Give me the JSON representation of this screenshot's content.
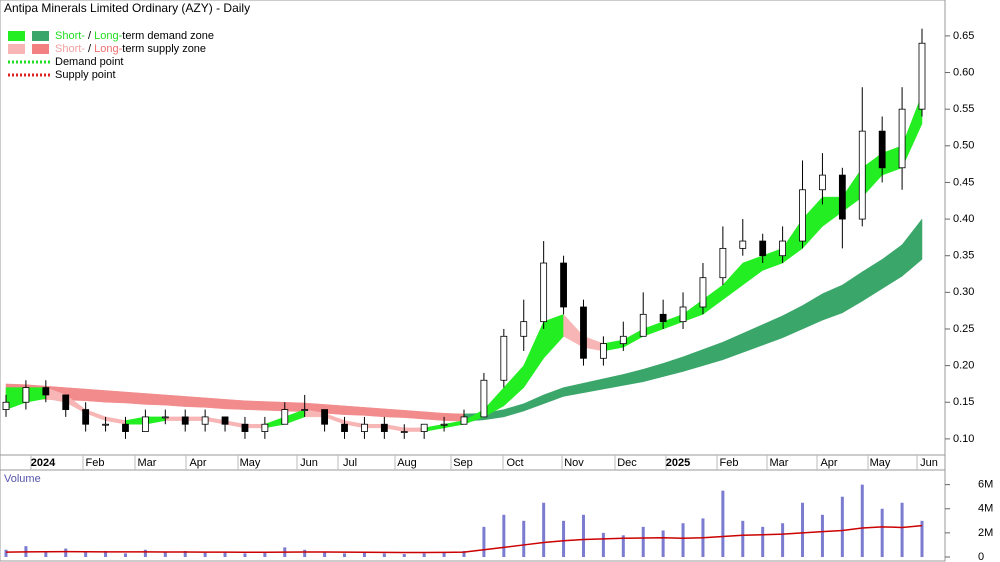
{
  "chart_data": [
    {
      "type": "candlestick",
      "title": "Antipa Minerals Limited Ordinary (AZY) - Daily",
      "legend": [
        {
          "parts": [
            "Short-",
            " / ",
            "Long-",
            "term demand zone"
          ],
          "part_colors": [
            "#22dd22",
            "#000000",
            "#22dd22",
            "#000000"
          ],
          "swatches": [
            "#22ee22",
            "#3aa66a"
          ]
        },
        {
          "parts": [
            "Short-",
            " / ",
            "Long-",
            "term supply zone"
          ],
          "part_colors": [
            "#f4a0a0",
            "#000000",
            "#f07070",
            "#000000"
          ],
          "swatches": [
            "#f7b5b5",
            "#f28080"
          ]
        },
        {
          "parts": [
            "Demand point"
          ],
          "part_colors": [
            "#000000"
          ],
          "line": "#22dd22"
        },
        {
          "parts": [
            "Supply point"
          ],
          "part_colors": [
            "#000000"
          ],
          "line": "#dd2222"
        }
      ],
      "xtick_labels": [
        "2024",
        "Feb",
        "Mar",
        "Apr",
        "May",
        "Jun",
        "Jul",
        "Aug",
        "Sep",
        "Oct",
        "Nov",
        "Dec",
        "2025",
        "Feb",
        "Mar",
        "Apr",
        "May",
        "Jun"
      ],
      "open": [
        0.14,
        0.15,
        0.17,
        0.16,
        0.14,
        0.12,
        0.12,
        0.11,
        0.13,
        0.13,
        0.12,
        0.13,
        0.12,
        0.11,
        0.12,
        0.14,
        0.14,
        0.12,
        0.11,
        0.12,
        0.11,
        0.11,
        0.12,
        0.12,
        0.13,
        0.18,
        0.24,
        0.26,
        0.34,
        0.28,
        0.21,
        0.23,
        0.24,
        0.27,
        0.26,
        0.28,
        0.32,
        0.36,
        0.37,
        0.35,
        0.37,
        0.44,
        0.46,
        0.4,
        0.52,
        0.47,
        0.55
      ],
      "high": [
        0.16,
        0.18,
        0.18,
        0.16,
        0.15,
        0.13,
        0.13,
        0.14,
        0.14,
        0.14,
        0.14,
        0.13,
        0.13,
        0.13,
        0.15,
        0.16,
        0.14,
        0.13,
        0.13,
        0.13,
        0.12,
        0.12,
        0.13,
        0.14,
        0.19,
        0.25,
        0.29,
        0.37,
        0.35,
        0.29,
        0.24,
        0.26,
        0.3,
        0.29,
        0.3,
        0.34,
        0.39,
        0.4,
        0.38,
        0.39,
        0.48,
        0.49,
        0.47,
        0.58,
        0.54,
        0.58,
        0.66
      ],
      "low": [
        0.13,
        0.14,
        0.15,
        0.13,
        0.11,
        0.11,
        0.1,
        0.11,
        0.12,
        0.11,
        0.11,
        0.11,
        0.1,
        0.1,
        0.12,
        0.13,
        0.11,
        0.1,
        0.1,
        0.1,
        0.1,
        0.1,
        0.11,
        0.12,
        0.13,
        0.17,
        0.22,
        0.25,
        0.27,
        0.2,
        0.2,
        0.22,
        0.24,
        0.25,
        0.25,
        0.27,
        0.31,
        0.35,
        0.34,
        0.34,
        0.36,
        0.42,
        0.36,
        0.39,
        0.45,
        0.44,
        0.54
      ],
      "close": [
        0.15,
        0.17,
        0.16,
        0.14,
        0.12,
        0.12,
        0.11,
        0.13,
        0.13,
        0.12,
        0.13,
        0.12,
        0.11,
        0.12,
        0.14,
        0.14,
        0.12,
        0.11,
        0.12,
        0.11,
        0.11,
        0.12,
        0.12,
        0.13,
        0.18,
        0.24,
        0.26,
        0.34,
        0.28,
        0.21,
        0.23,
        0.24,
        0.27,
        0.26,
        0.28,
        0.32,
        0.36,
        0.37,
        0.35,
        0.37,
        0.44,
        0.46,
        0.4,
        0.52,
        0.47,
        0.55,
        0.64
      ],
      "zones": [
        {
          "demand_color": "#3aa66a",
          "supply_color": "#f28c8c",
          "upper": [
            0.175,
            0.174,
            0.172,
            0.17,
            0.168,
            0.166,
            0.164,
            0.162,
            0.16,
            0.158,
            0.156,
            0.154,
            0.152,
            0.151,
            0.15,
            0.149,
            0.147,
            0.145,
            0.143,
            0.141,
            0.139,
            0.137,
            0.135,
            0.134,
            0.135,
            0.14,
            0.148,
            0.16,
            0.17,
            0.176,
            0.182,
            0.188,
            0.195,
            0.203,
            0.212,
            0.222,
            0.232,
            0.244,
            0.256,
            0.268,
            0.282,
            0.298,
            0.31,
            0.328,
            0.345,
            0.365,
            0.4
          ],
          "lower": [
            0.155,
            0.155,
            0.154,
            0.153,
            0.152,
            0.15,
            0.149,
            0.147,
            0.146,
            0.144,
            0.143,
            0.141,
            0.14,
            0.139,
            0.138,
            0.137,
            0.135,
            0.133,
            0.132,
            0.13,
            0.129,
            0.127,
            0.125,
            0.124,
            0.126,
            0.13,
            0.138,
            0.148,
            0.158,
            0.163,
            0.168,
            0.173,
            0.178,
            0.185,
            0.192,
            0.2,
            0.208,
            0.218,
            0.228,
            0.238,
            0.25,
            0.262,
            0.272,
            0.288,
            0.305,
            0.322,
            0.345
          ]
        },
        {
          "demand_color": "#22ee22",
          "supply_color": "#f7b5b5",
          "upper": [
            0.17,
            0.17,
            0.17,
            0.16,
            0.14,
            0.13,
            0.125,
            0.13,
            0.13,
            0.13,
            0.13,
            0.125,
            0.12,
            0.12,
            0.13,
            0.14,
            0.135,
            0.125,
            0.12,
            0.12,
            0.115,
            0.115,
            0.12,
            0.125,
            0.14,
            0.17,
            0.2,
            0.26,
            0.27,
            0.24,
            0.23,
            0.235,
            0.25,
            0.26,
            0.27,
            0.29,
            0.31,
            0.34,
            0.35,
            0.36,
            0.4,
            0.43,
            0.43,
            0.47,
            0.49,
            0.5,
            0.57
          ],
          "lower": [
            0.14,
            0.15,
            0.155,
            0.15,
            0.135,
            0.125,
            0.12,
            0.12,
            0.125,
            0.125,
            0.125,
            0.12,
            0.115,
            0.115,
            0.12,
            0.13,
            0.13,
            0.12,
            0.115,
            0.115,
            0.11,
            0.11,
            0.115,
            0.12,
            0.13,
            0.145,
            0.17,
            0.21,
            0.24,
            0.225,
            0.22,
            0.225,
            0.24,
            0.25,
            0.26,
            0.27,
            0.29,
            0.31,
            0.33,
            0.34,
            0.36,
            0.39,
            0.41,
            0.43,
            0.46,
            0.47,
            0.53
          ]
        }
      ],
      "ylim": [
        0.078,
        0.699
      ],
      "yticks": [
        {
          "value": 0.1,
          "label": "0.10"
        },
        {
          "value": 0.15,
          "label": "0.15"
        },
        {
          "value": 0.2,
          "label": "0.20"
        },
        {
          "value": 0.25,
          "label": "0.25"
        },
        {
          "value": 0.3,
          "label": "0.30"
        },
        {
          "value": 0.35,
          "label": "0.35"
        },
        {
          "value": 0.4,
          "label": "0.40"
        },
        {
          "value": 0.45,
          "label": "0.45"
        },
        {
          "value": 0.5,
          "label": "0.50"
        },
        {
          "value": 0.55,
          "label": "0.55"
        },
        {
          "value": 0.6,
          "label": "0.60"
        },
        {
          "value": 0.65,
          "label": "0.65"
        }
      ]
    },
    {
      "type": "bar",
      "title": "Volume",
      "color": "#7b7bd0",
      "average_color": "#cc0000",
      "values": [
        600000,
        900000,
        500000,
        700000,
        400000,
        500000,
        300000,
        600000,
        400000,
        500000,
        350000,
        400000,
        300000,
        350000,
        800000,
        600000,
        400000,
        300000,
        350000,
        300000,
        250000,
        300000,
        400000,
        500000,
        2500000,
        3500000,
        3000000,
        4500000,
        3000000,
        3500000,
        2000000,
        1800000,
        2500000,
        2200000,
        2800000,
        3200000,
        5500000,
        3000000,
        2500000,
        2800000,
        4500000,
        3500000,
        5000000,
        6000000,
        4000000,
        4500000,
        3000000
      ],
      "average": [
        400000,
        420000,
        440000,
        450000,
        440000,
        430000,
        420000,
        420000,
        410000,
        410000,
        400000,
        400000,
        390000,
        390000,
        400000,
        410000,
        410000,
        400000,
        390000,
        380000,
        370000,
        370000,
        380000,
        400000,
        600000,
        800000,
        1000000,
        1200000,
        1350000,
        1450000,
        1500000,
        1550000,
        1580000,
        1600000,
        1550000,
        1600000,
        1700000,
        1800000,
        1850000,
        1900000,
        2000000,
        2100000,
        2200000,
        2400000,
        2500000,
        2450000,
        2600000
      ],
      "ylim": [
        0,
        6800000
      ],
      "yticks": [
        {
          "value": 0,
          "label": "0"
        },
        {
          "value": 2000000,
          "label": "2M"
        },
        {
          "value": 4000000,
          "label": "4M"
        },
        {
          "value": 6000000,
          "label": "6M"
        }
      ]
    }
  ]
}
